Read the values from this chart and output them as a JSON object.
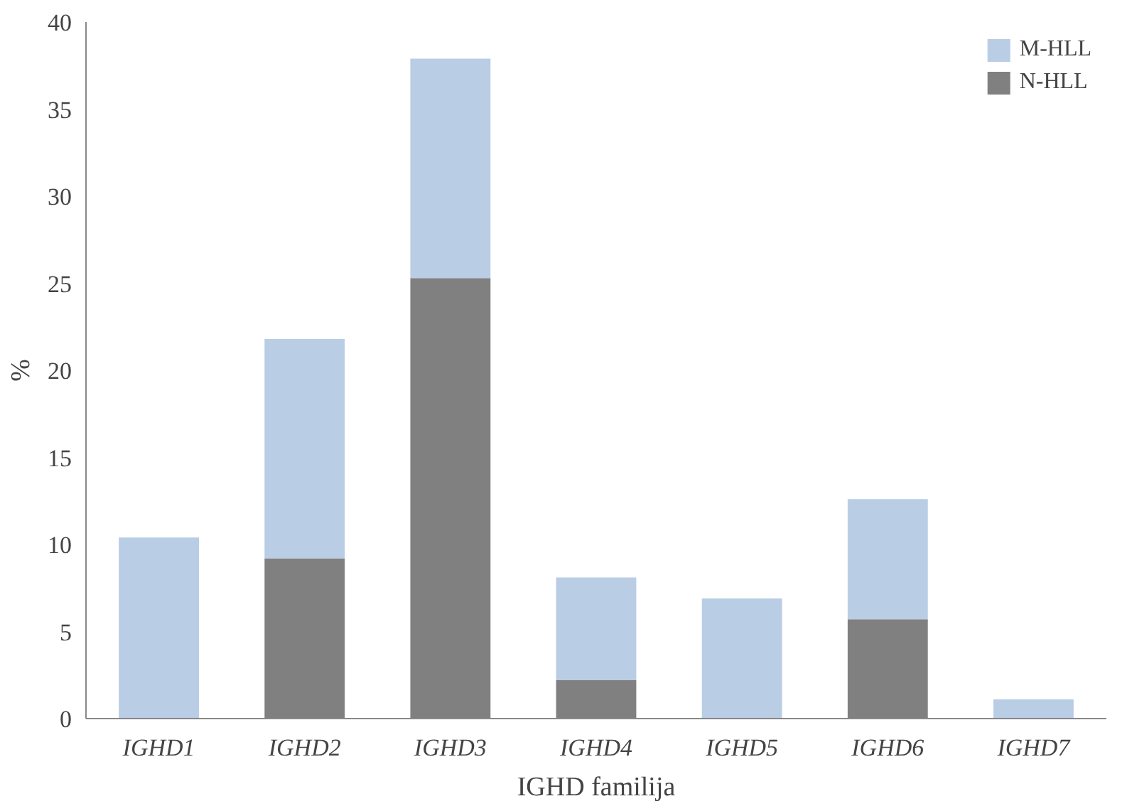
{
  "chart_data": {
    "type": "bar",
    "stacked": true,
    "xlabel": "IGHD familija",
    "ylabel": "%",
    "categories": [
      "IGHD1",
      "IGHD2",
      "IGHD3",
      "IGHD4",
      "IGHD5",
      "IGHD6",
      "IGHD7"
    ],
    "series": [
      {
        "name": "N-HLL",
        "color": "#808080",
        "values": [
          0,
          9.2,
          25.3,
          2.2,
          0,
          5.7,
          0
        ]
      },
      {
        "name": "M-HLL",
        "color": "#b9cde5",
        "values": [
          10.4,
          12.6,
          12.6,
          5.9,
          6.9,
          6.9,
          1.1
        ]
      }
    ],
    "ylim": [
      0,
      40
    ],
    "yticks": [
      0,
      5,
      10,
      15,
      20,
      25,
      30,
      35,
      40
    ],
    "grid": false,
    "legend": "top right"
  }
}
